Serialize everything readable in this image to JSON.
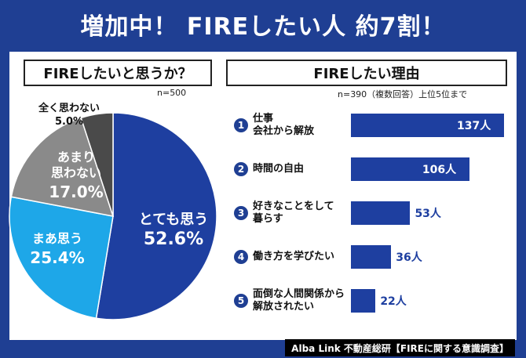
{
  "headline": "増加中！ FIREしたい人 約7割！",
  "left_title": "FIREしたいと思うか？",
  "left_note": "n=500",
  "right_title": "FIREしたい理由",
  "right_note": "n=390（複数回答）上位5位まで",
  "footer": "Alba Link 不動産総研【FIREに関する意識調査】",
  "colors": {
    "dark_blue": "#1e3fa0",
    "light_blue": "#1ea7e8",
    "gray": "#8a8a8a",
    "dark_gray": "#4a4a4a",
    "background": "#1f3f93"
  },
  "chart_data": [
    {
      "type": "pie",
      "title": "FIREしたいと思うか？",
      "slices": [
        {
          "label": "とても思う",
          "value": 52.6,
          "value_text": "52.6%",
          "color": "#1e3fa0"
        },
        {
          "label": "まあ思う",
          "value": 25.4,
          "value_text": "25.4%",
          "color": "#1ea7e8"
        },
        {
          "label": "あまり思わない",
          "value": 17.0,
          "value_text": "17.0%",
          "color": "#8a8a8a"
        },
        {
          "label": "全く思わない",
          "value": 5.0,
          "value_text": "5.0%",
          "color": "#4a4a4a"
        }
      ]
    },
    {
      "type": "bar",
      "title": "FIREしたい理由",
      "categories": [
        "仕事\n会社から解放",
        "時間の自由",
        "好きなことをして\n暮らす",
        "働き方を学びたい",
        "面倒な人間関係から\n解放されたい"
      ],
      "ranks": [
        "1",
        "2",
        "3",
        "4",
        "5"
      ],
      "values": [
        137,
        106,
        53,
        36,
        22
      ],
      "value_labels": [
        "137人",
        "106人",
        "53人",
        "36人",
        "22人"
      ]
    }
  ]
}
